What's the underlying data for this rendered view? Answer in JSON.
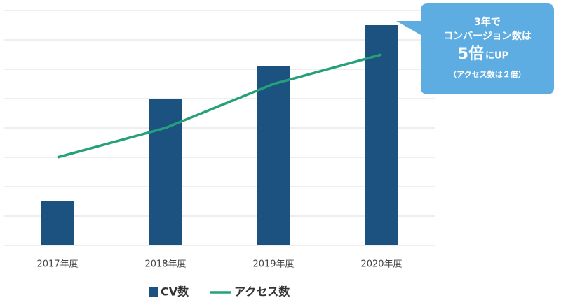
{
  "chart_data": {
    "type": "bar_line",
    "categories": [
      "2017年度",
      "2018年度",
      "2019年度",
      "2020年度"
    ],
    "series": [
      {
        "name": "CV数",
        "type": "bar",
        "color": "#1b5280",
        "values": [
          1.5,
          5,
          6.1,
          7.5
        ]
      },
      {
        "name": "アクセス数",
        "type": "line",
        "color": "#25a07a",
        "values": [
          3,
          4,
          5.5,
          6.5
        ]
      }
    ],
    "ylim": [
      0,
      8
    ],
    "yticks": [
      0,
      1,
      2,
      3,
      4,
      5,
      6,
      7,
      8
    ],
    "grid": true,
    "legend": "bottom",
    "annotation": {
      "lines": [
        "3年で",
        "コンバージョン数は"
      ],
      "highlight": "5倍",
      "highlight_suffix": "にUP",
      "note": "（アクセス数は２倍）"
    }
  }
}
